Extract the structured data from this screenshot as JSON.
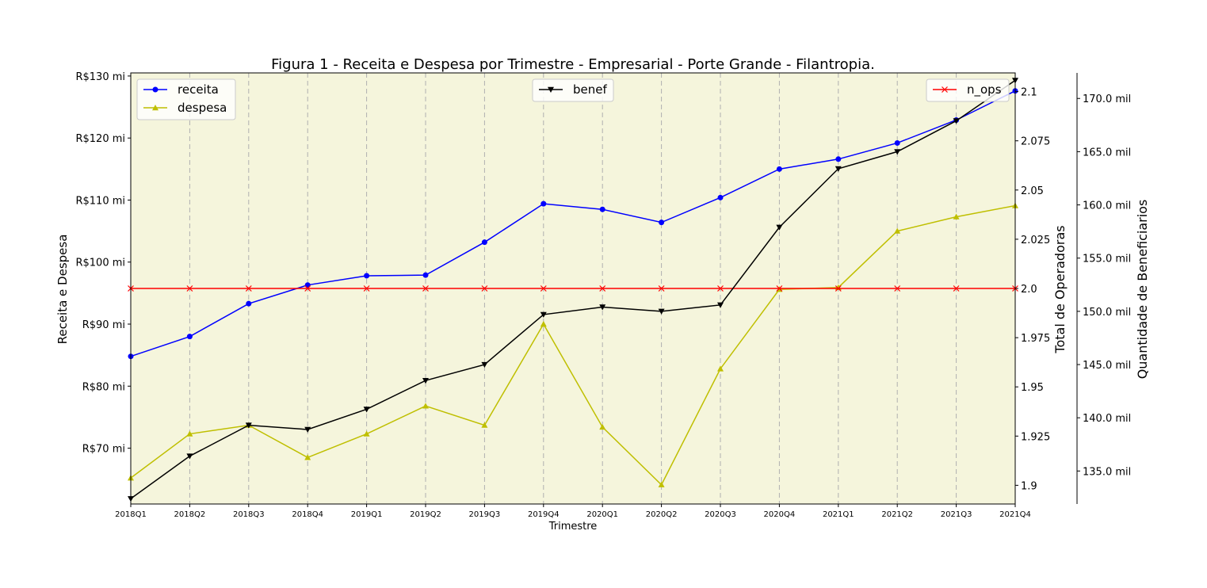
{
  "chart_data": {
    "type": "line",
    "title": "Figura 1 - Receita e Despesa por Trimestre - Empresarial - Porte Grande - Filantropia.",
    "xlabel": "Trimestre",
    "categories": [
      "2018Q1",
      "2018Q2",
      "2018Q3",
      "2018Q4",
      "2019Q1",
      "2019Q2",
      "2019Q3",
      "2019Q4",
      "2020Q1",
      "2020Q2",
      "2020Q3",
      "2020Q4",
      "2021Q1",
      "2021Q2",
      "2021Q3",
      "2021Q4"
    ],
    "background": "#f5f5dc",
    "grid": "vertical dashed",
    "axes": {
      "left": {
        "label": "Receita e Despesa",
        "ylim": [
          61,
          130.5
        ],
        "ticks": [
          70,
          80,
          90,
          100,
          110,
          120,
          130
        ],
        "tick_labels": [
          "R$70 mi",
          "R$80 mi",
          "R$90 mi",
          "R$100 mi",
          "R$110 mi",
          "R$120 mi",
          "R$130 mi"
        ]
      },
      "right_ops": {
        "label": "Total de Operadoras",
        "ylim": [
          1.8905,
          2.1095
        ],
        "ticks": [
          1.9,
          1.925,
          1.95,
          1.975,
          2.0,
          2.025,
          2.05,
          2.075,
          2.1
        ],
        "tick_labels": [
          "1.9",
          "1.925",
          "1.95",
          "1.975",
          "2.0",
          "2.025",
          "2.05",
          "2.075",
          "2.1"
        ]
      },
      "right_benef": {
        "label": "Quantidade de Beneficiarios",
        "ylim": [
          131.9,
          172.4
        ],
        "ticks": [
          135,
          140,
          145,
          150,
          155,
          160,
          165,
          170
        ],
        "tick_labels": [
          "135.0 mil",
          "140.0 mil",
          "145.0 mil",
          "150.0 mil",
          "155.0 mil",
          "160.0 mil",
          "165.0 mil",
          "170.0 mil"
        ]
      }
    },
    "series": [
      {
        "name": "receita",
        "axis": "left",
        "color": "#0000ff",
        "marker": "circle",
        "values": [
          84.8,
          88.0,
          93.3,
          96.3,
          97.8,
          97.9,
          103.2,
          109.4,
          108.5,
          106.4,
          110.4,
          115.0,
          116.6,
          119.2,
          122.9,
          127.6
        ]
      },
      {
        "name": "despesa",
        "axis": "left",
        "color": "#bfbf00",
        "marker": "triangle-up",
        "values": [
          65.2,
          72.3,
          73.7,
          68.5,
          72.3,
          76.8,
          73.7,
          90.0,
          73.4,
          64.1,
          82.8,
          95.6,
          95.9,
          105.0,
          107.3,
          109.1
        ]
      },
      {
        "name": "benef",
        "axis": "right_benef",
        "color": "#000000",
        "marker": "triangle-down",
        "values": [
          132.4,
          136.4,
          139.3,
          138.9,
          140.8,
          143.5,
          145.0,
          149.7,
          150.4,
          150.0,
          150.6,
          157.9,
          163.4,
          165.0,
          167.9,
          171.7
        ]
      },
      {
        "name": "n_ops",
        "axis": "right_ops",
        "color": "#ff0000",
        "marker": "x",
        "values": [
          2,
          2,
          2,
          2,
          2,
          2,
          2,
          2,
          2,
          2,
          2,
          2,
          2,
          2,
          2,
          2
        ]
      }
    ],
    "legends": [
      {
        "position": "upper-left",
        "entries": [
          "receita",
          "despesa"
        ]
      },
      {
        "position": "upper-center",
        "entries": [
          "benef"
        ]
      },
      {
        "position": "upper-right",
        "entries": [
          "n_ops"
        ]
      }
    ]
  }
}
